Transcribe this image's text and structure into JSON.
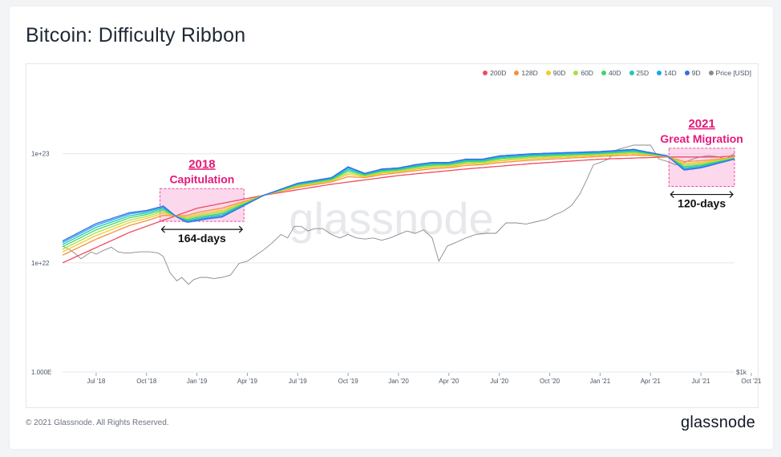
{
  "title": "Bitcoin: Difficulty Ribbon",
  "footer": "© 2021 Glassnode. All Rights Reserved.",
  "brand": "glassnode",
  "watermark": "glassnode",
  "legend": [
    {
      "label": "200D",
      "color": "#ef4b5f"
    },
    {
      "label": "128D",
      "color": "#f7913d"
    },
    {
      "label": "90D",
      "color": "#f5c92a"
    },
    {
      "label": "60D",
      "color": "#a6e23c"
    },
    {
      "label": "40D",
      "color": "#3fd66b"
    },
    {
      "label": "25D",
      "color": "#22c7b8"
    },
    {
      "label": "14D",
      "color": "#1ea5f2"
    },
    {
      "label": "9D",
      "color": "#3b6be3"
    },
    {
      "label": "Price [USD]",
      "color": "#8a8a8a"
    }
  ],
  "chart_data": {
    "type": "line",
    "title": "Bitcoin: Difficulty Ribbon",
    "x_ticks": [
      "Jul '18",
      "Oct '18",
      "Jan '19",
      "Apr '19",
      "Jul '19",
      "Oct '19",
      "Jan '20",
      "Apr '20",
      "Jul '20",
      "Oct '20",
      "Jan '21",
      "Apr '21",
      "Jul '21",
      "Oct '21"
    ],
    "y_left_ticks": [
      "1e+23",
      "1e+22",
      "1.000E"
    ],
    "y_right_ticks": [
      "$1k"
    ],
    "y_scale": "log",
    "x_range": [
      0,
      40
    ],
    "y_range_log10": [
      21,
      23.6
    ],
    "difficulty_200d": [
      [
        0,
        22.0
      ],
      [
        4,
        22.28
      ],
      [
        8,
        22.5
      ],
      [
        12,
        22.62
      ],
      [
        16,
        22.72
      ],
      [
        20,
        22.8
      ],
      [
        24,
        22.86
      ],
      [
        28,
        22.91
      ],
      [
        32,
        22.95
      ],
      [
        36,
        22.97
      ],
      [
        39,
        22.97
      ],
      [
        40,
        22.98
      ]
    ],
    "difficulty_9d": [
      [
        0,
        22.2
      ],
      [
        2,
        22.36
      ],
      [
        4,
        22.46
      ],
      [
        5,
        22.48
      ],
      [
        6,
        22.52
      ],
      [
        6.8,
        22.42
      ],
      [
        7.4,
        22.37
      ],
      [
        8.5,
        22.4
      ],
      [
        9.5,
        22.42
      ],
      [
        10.5,
        22.5
      ],
      [
        12,
        22.62
      ],
      [
        14,
        22.73
      ],
      [
        16,
        22.78
      ],
      [
        17,
        22.88
      ],
      [
        18,
        22.82
      ],
      [
        19,
        22.86
      ],
      [
        20,
        22.87
      ],
      [
        21,
        22.9
      ],
      [
        22,
        22.92
      ],
      [
        23,
        22.92
      ],
      [
        24,
        22.95
      ],
      [
        25,
        22.95
      ],
      [
        26,
        22.98
      ],
      [
        28,
        23.0
      ],
      [
        30,
        23.01
      ],
      [
        32,
        23.02
      ],
      [
        34,
        23.04
      ],
      [
        36,
        22.98
      ],
      [
        37,
        22.85
      ],
      [
        38,
        22.87
      ],
      [
        40,
        22.95
      ]
    ],
    "ribbon_series": [
      "200D",
      "128D",
      "90D",
      "60D",
      "40D",
      "25D",
      "14D",
      "9D"
    ],
    "price_log10": [
      [
        0,
        3.85
      ],
      [
        0.4,
        3.82
      ],
      [
        0.8,
        3.78
      ],
      [
        1.1,
        3.74
      ],
      [
        1.4,
        3.77
      ],
      [
        1.7,
        3.8
      ],
      [
        2.0,
        3.78
      ],
      [
        2.4,
        3.81
      ],
      [
        2.9,
        3.84
      ],
      [
        3.3,
        3.8
      ],
      [
        3.7,
        3.79
      ],
      [
        4.0,
        3.79
      ],
      [
        4.6,
        3.8
      ],
      [
        5.2,
        3.8
      ],
      [
        5.7,
        3.79
      ],
      [
        6.0,
        3.76
      ],
      [
        6.4,
        3.62
      ],
      [
        6.8,
        3.55
      ],
      [
        7.1,
        3.58
      ],
      [
        7.5,
        3.52
      ],
      [
        7.8,
        3.56
      ],
      [
        8.2,
        3.58
      ],
      [
        8.6,
        3.58
      ],
      [
        9.0,
        3.57
      ],
      [
        9.5,
        3.58
      ],
      [
        10.0,
        3.6
      ],
      [
        10.5,
        3.7
      ],
      [
        11.0,
        3.72
      ],
      [
        11.5,
        3.77
      ],
      [
        12.0,
        3.82
      ],
      [
        12.5,
        3.88
      ],
      [
        13.0,
        3.95
      ],
      [
        13.4,
        3.92
      ],
      [
        13.8,
        4.02
      ],
      [
        14.2,
        4.02
      ],
      [
        14.6,
        3.98
      ],
      [
        15.0,
        4.0
      ],
      [
        15.5,
        4.0
      ],
      [
        16.0,
        3.95
      ],
      [
        16.5,
        3.92
      ],
      [
        17.0,
        3.95
      ],
      [
        17.5,
        3.92
      ],
      [
        18.0,
        3.91
      ],
      [
        18.5,
        3.92
      ],
      [
        19.0,
        3.9
      ],
      [
        19.5,
        3.92
      ],
      [
        20.0,
        3.95
      ],
      [
        20.5,
        3.98
      ],
      [
        21.0,
        3.96
      ],
      [
        21.5,
        3.99
      ],
      [
        22.0,
        3.92
      ],
      [
        22.4,
        3.72
      ],
      [
        22.9,
        3.85
      ],
      [
        23.4,
        3.88
      ],
      [
        24.0,
        3.92
      ],
      [
        24.6,
        3.95
      ],
      [
        25.2,
        3.96
      ],
      [
        25.8,
        3.96
      ],
      [
        26.4,
        4.05
      ],
      [
        27.0,
        4.05
      ],
      [
        27.6,
        4.04
      ],
      [
        28.2,
        4.06
      ],
      [
        28.8,
        4.08
      ],
      [
        29.3,
        4.12
      ],
      [
        29.8,
        4.15
      ],
      [
        30.3,
        4.2
      ],
      [
        30.8,
        4.3
      ],
      [
        31.2,
        4.42
      ],
      [
        31.6,
        4.55
      ],
      [
        32.0,
        4.57
      ],
      [
        32.5,
        4.6
      ],
      [
        33.0,
        4.68
      ],
      [
        33.5,
        4.7
      ],
      [
        34.0,
        4.72
      ],
      [
        34.5,
        4.72
      ],
      [
        35.0,
        4.72
      ],
      [
        35.5,
        4.6
      ],
      [
        36.0,
        4.58
      ],
      [
        36.5,
        4.55
      ],
      [
        37.0,
        4.57
      ],
      [
        37.5,
        4.6
      ],
      [
        38.0,
        4.62
      ],
      [
        38.5,
        4.63
      ],
      [
        39.0,
        4.62
      ],
      [
        39.5,
        4.6
      ],
      [
        40.0,
        4.65
      ]
    ],
    "annotations": [
      {
        "label_year": "2018",
        "label_name": "Capitulation",
        "duration": "164-days",
        "x_start": 5.8,
        "x_end": 10.8
      },
      {
        "label_year": "2021",
        "label_name": "Great Migration",
        "duration": "120-days",
        "x_start": 36.1,
        "x_end": 40
      }
    ]
  }
}
